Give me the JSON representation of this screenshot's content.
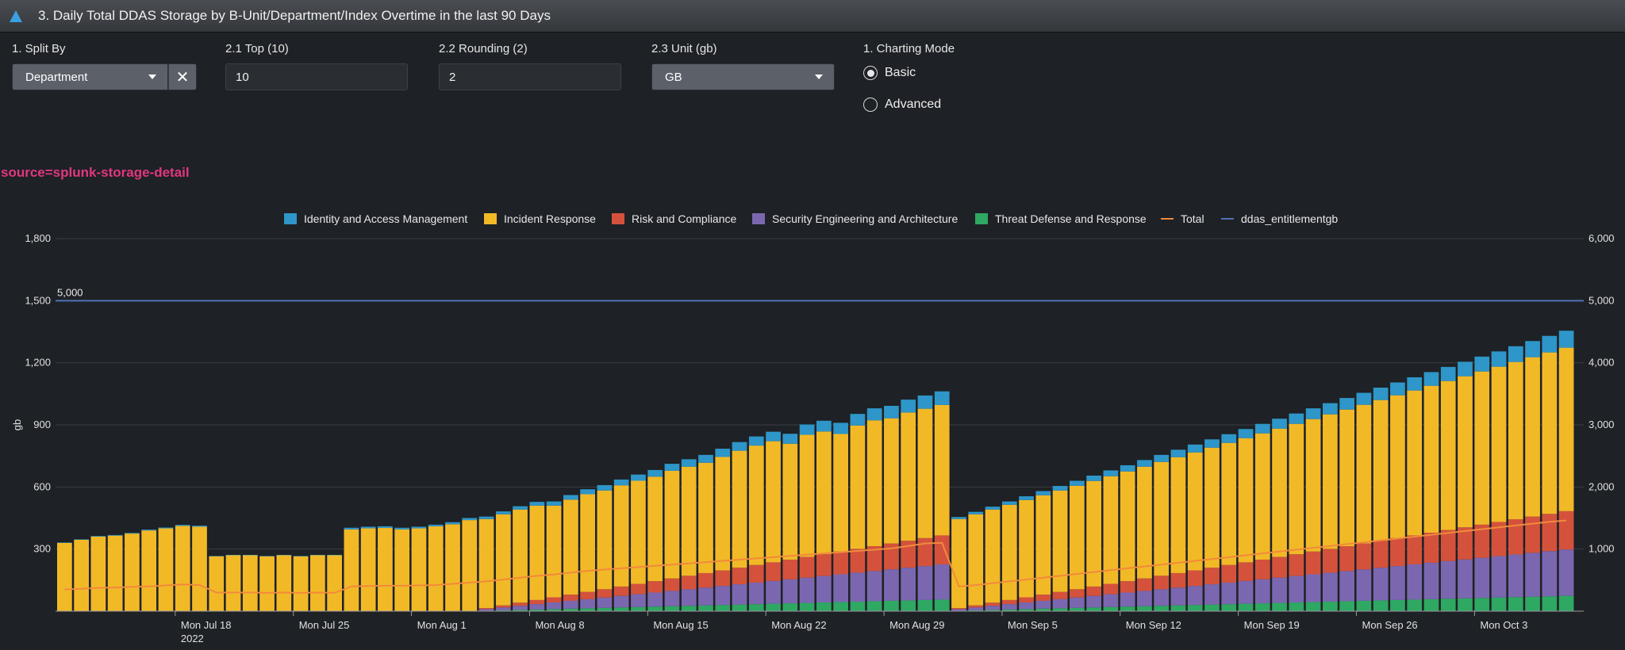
{
  "panel": {
    "title": "3. Daily Total DDAS Storage by B-Unit/Department/Index Overtime in the last 90 Days"
  },
  "controls": {
    "split_by": {
      "label": "1. Split By",
      "value": "Department"
    },
    "top": {
      "label": "2.1 Top (10)",
      "value": "10"
    },
    "rounding": {
      "label": "2.2 Rounding (2)",
      "value": "2"
    },
    "unit": {
      "label": "2.3 Unit (gb)",
      "value": "GB"
    },
    "charting_mode": {
      "label": "1. Charting Mode",
      "options": [
        "Basic",
        "Advanced"
      ],
      "selected": "Basic"
    }
  },
  "source_text": "source=splunk-storage-detail",
  "chart_data": {
    "type": "bar",
    "stacked": true,
    "ylabel": "gb",
    "ylim": [
      0,
      1800
    ],
    "y_ticks": [
      "300",
      "600",
      "900",
      "1,200",
      "1,500",
      "1,800"
    ],
    "y2lim": [
      0,
      6000
    ],
    "y2_ticks": [
      "1,000",
      "2,000",
      "3,000",
      "4,000",
      "5,000",
      "6,000"
    ],
    "x_ticks": [
      {
        "label": "Mon Jul 18",
        "sub": "2022",
        "index": 7
      },
      {
        "label": "Mon Jul 25",
        "index": 14
      },
      {
        "label": "Mon Aug 1",
        "index": 21
      },
      {
        "label": "Mon Aug 8",
        "index": 28
      },
      {
        "label": "Mon Aug 15",
        "index": 35
      },
      {
        "label": "Mon Aug 22",
        "index": 42
      },
      {
        "label": "Mon Aug 29",
        "index": 49
      },
      {
        "label": "Mon Sep 5",
        "index": 56
      },
      {
        "label": "Mon Sep 12",
        "index": 63
      },
      {
        "label": "Mon Sep 19",
        "index": 70
      },
      {
        "label": "Mon Sep 26",
        "index": 77
      },
      {
        "label": "Mon Oct 3",
        "index": 84
      }
    ],
    "num_days": 90,
    "series": [
      {
        "name": "Threat Defense and Response",
        "color": "#2ea862",
        "values": [
          0,
          0,
          0,
          0,
          0,
          0,
          0,
          0,
          0,
          0,
          0,
          0,
          0,
          0,
          0,
          0,
          0,
          0,
          0,
          0,
          0,
          0,
          0,
          0,
          0,
          2,
          4,
          6,
          8,
          10,
          12,
          14,
          16,
          18,
          20,
          22,
          24,
          26,
          28,
          30,
          32,
          34,
          36,
          38,
          40,
          42,
          44,
          46,
          48,
          50,
          52,
          54,
          56,
          2,
          4,
          6,
          8,
          10,
          12,
          14,
          16,
          18,
          20,
          22,
          24,
          26,
          28,
          30,
          32,
          34,
          36,
          38,
          40,
          42,
          44,
          46,
          48,
          50,
          52,
          54,
          56,
          58,
          60,
          62,
          64,
          66,
          68,
          70,
          72,
          74
        ]
      },
      {
        "name": "Security Engineering and Architecture",
        "color": "#7b67b0",
        "values": [
          0,
          0,
          0,
          0,
          0,
          0,
          0,
          0,
          0,
          0,
          0,
          0,
          0,
          0,
          0,
          0,
          0,
          0,
          0,
          0,
          0,
          0,
          0,
          0,
          0,
          8,
          14,
          20,
          26,
          32,
          38,
          44,
          50,
          56,
          62,
          68,
          74,
          80,
          86,
          92,
          98,
          104,
          110,
          116,
          122,
          128,
          134,
          140,
          146,
          152,
          158,
          164,
          170,
          8,
          14,
          20,
          26,
          32,
          38,
          44,
          50,
          56,
          62,
          68,
          74,
          80,
          86,
          92,
          98,
          104,
          110,
          116,
          122,
          128,
          134,
          140,
          146,
          152,
          158,
          164,
          170,
          176,
          182,
          188,
          194,
          200,
          206,
          212,
          218,
          224
        ]
      },
      {
        "name": "Risk and Compliance",
        "color": "#d4523c",
        "values": [
          0,
          0,
          0,
          0,
          0,
          0,
          0,
          0,
          0,
          0,
          0,
          0,
          0,
          0,
          0,
          0,
          0,
          0,
          0,
          0,
          0,
          0,
          0,
          0,
          0,
          5,
          10,
          15,
          20,
          25,
          30,
          35,
          40,
          45,
          50,
          55,
          60,
          65,
          70,
          75,
          80,
          85,
          90,
          95,
          100,
          105,
          110,
          115,
          120,
          125,
          130,
          135,
          140,
          5,
          10,
          15,
          20,
          25,
          30,
          35,
          40,
          45,
          50,
          55,
          60,
          65,
          70,
          75,
          80,
          85,
          90,
          95,
          100,
          105,
          110,
          115,
          120,
          125,
          130,
          135,
          140,
          145,
          150,
          155,
          160,
          165,
          170,
          175,
          180,
          185
        ]
      },
      {
        "name": "Incident Response",
        "color": "#f2b927",
        "values": [
          330,
          345,
          360,
          365,
          375,
          390,
          400,
          412,
          408,
          265,
          270,
          270,
          265,
          270,
          265,
          270,
          270,
          395,
          400,
          402,
          395,
          400,
          410,
          420,
          440,
          430,
          440,
          450,
          456,
          443,
          459,
          472,
          477,
          489,
          498,
          505,
          520,
          527,
          533,
          548,
          565,
          577,
          585,
          560,
          590,
          593,
          568,
          596,
          608,
          605,
          620,
          625,
          630,
          430,
          440,
          450,
          460,
          470,
          480,
          490,
          500,
          510,
          520,
          530,
          540,
          550,
          560,
          570,
          580,
          590,
          600,
          610,
          620,
          630,
          640,
          650,
          660,
          670,
          680,
          690,
          700,
          710,
          720,
          730,
          740,
          750,
          760,
          770,
          780,
          790
        ]
      },
      {
        "name": "Identity and Access Management",
        "color": "#2e96c8",
        "values": [
          2,
          2,
          3,
          3,
          3,
          4,
          4,
          5,
          5,
          2,
          2,
          2,
          2,
          2,
          2,
          2,
          2,
          8,
          8,
          8,
          8,
          8,
          8,
          10,
          10,
          12,
          14,
          16,
          18,
          20,
          22,
          24,
          26,
          28,
          30,
          32,
          34,
          36,
          38,
          40,
          42,
          44,
          46,
          48,
          50,
          52,
          54,
          56,
          58,
          60,
          62,
          64,
          66,
          10,
          12,
          14,
          16,
          18,
          20,
          22,
          24,
          26,
          28,
          30,
          32,
          34,
          36,
          38,
          40,
          42,
          44,
          46,
          48,
          50,
          52,
          54,
          56,
          58,
          60,
          62,
          64,
          66,
          68,
          70,
          72,
          74,
          76,
          78,
          80,
          82
        ]
      }
    ],
    "overlays": [
      {
        "name": "Total",
        "color": "#f08a3c",
        "axis": "right",
        "values": [
          350,
          360,
          375,
          380,
          390,
          400,
          415,
          430,
          420,
          300,
          300,
          300,
          295,
          300,
          295,
          300,
          295,
          400,
          405,
          410,
          410,
          415,
          420,
          440,
          460,
          480,
          510,
          540,
          570,
          590,
          620,
          650,
          670,
          690,
          710,
          730,
          750,
          770,
          790,
          810,
          830,
          850,
          870,
          890,
          910,
          930,
          950,
          970,
          990,
          1010,
          1050,
          1090,
          1100,
          400,
          420,
          450,
          480,
          510,
          540,
          570,
          600,
          630,
          660,
          690,
          720,
          750,
          780,
          810,
          840,
          870,
          900,
          930,
          960,
          990,
          1020,
          1050,
          1080,
          1110,
          1140,
          1170,
          1200,
          1230,
          1260,
          1290,
          1320,
          1350,
          1380,
          1410,
          1440,
          1460
        ]
      },
      {
        "name": "ddas_entitlementgb",
        "color": "#4f72b8",
        "axis": "right",
        "value": 5000,
        "label": "5,000"
      }
    ]
  }
}
